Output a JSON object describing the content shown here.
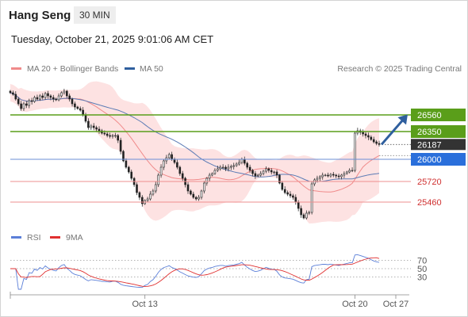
{
  "header": {
    "instrument": "Hang Seng",
    "interval": "30 MIN",
    "datetime": "Tuesday, October 21, 2025 9:01:06 AM CET"
  },
  "legend": {
    "ma20_label": "MA 20 + Bollinger Bands",
    "ma50_label": "MA 50",
    "copyright": "Research © 2025 Trading Central",
    "rsi_label": "RSI",
    "rsi_ma_label": "9MA"
  },
  "colors": {
    "band_fill": "#fde2e2",
    "ma20": "#f08a8a",
    "ma50": "#5b7bb5",
    "resistance": "#5a9e1a",
    "pivot": "#6b8fd6",
    "support": "#ee8f8f",
    "current": "#333333",
    "arrow": "#2f5f9e",
    "rsi": "#5b7fd8",
    "rsi_ma": "#e03030"
  },
  "chart_data": [
    {
      "type": "candlestick",
      "title": "Hang Seng",
      "ylim": [
        25100,
        27050
      ],
      "x_ticks": [
        "Oct 13",
        "Oct 20",
        "Oct 27"
      ],
      "levels": [
        {
          "label": "26560",
          "value": 26560,
          "kind": "resistance"
        },
        {
          "label": "26350",
          "value": 26350,
          "kind": "resistance"
        },
        {
          "label": "26187",
          "value": 26187,
          "kind": "current"
        },
        {
          "label": "26000",
          "value": 26000,
          "kind": "pivot"
        },
        {
          "label": "25720",
          "value": 25720,
          "kind": "support"
        },
        {
          "label": "25460",
          "value": 25460,
          "kind": "support"
        }
      ],
      "close": [
        26840,
        26820,
        26760,
        26700,
        26640,
        26700,
        26680,
        26740,
        26730,
        26780,
        26760,
        26800,
        26780,
        26830,
        26800,
        26780,
        26760,
        26750,
        26800,
        26840,
        26860,
        26800,
        26760,
        26700,
        26660,
        26640,
        26620,
        26560,
        26480,
        26400,
        26420,
        26400,
        26380,
        26360,
        26330,
        26320,
        26300,
        26290,
        26300,
        26300,
        26240,
        26100,
        25980,
        25900,
        25840,
        25760,
        25680,
        25580,
        25520,
        25440,
        25480,
        25500,
        25560,
        25600,
        25680,
        25800,
        25900,
        25980,
        26020,
        26060,
        26000,
        25960,
        25900,
        25820,
        25760,
        25680,
        25600,
        25560,
        25520,
        25500,
        25520,
        25600,
        25700,
        25760,
        25800,
        25820,
        25860,
        25880,
        25900,
        25900,
        25880,
        25900,
        25910,
        25920,
        25940,
        25960,
        26000,
        25950,
        25900,
        25860,
        25820,
        25790,
        25800,
        25820,
        25850,
        25880,
        25860,
        25840,
        25840,
        25800,
        25700,
        25620,
        25580,
        25560,
        25540,
        25520,
        25460,
        25380,
        25300,
        25260,
        25320,
        25330,
        25690,
        25740,
        25760,
        25780,
        25800,
        25800,
        25790,
        25810,
        25800,
        25790,
        25780,
        25800,
        25820,
        25840,
        25860,
        25860,
        26330,
        26360,
        26340,
        26320,
        26300,
        26280,
        26250,
        26220,
        26200,
        26187
      ],
      "rsi": {
        "ylim": [
          0,
          100
        ],
        "ticks": [
          70,
          50,
          30
        ]
      }
    }
  ]
}
